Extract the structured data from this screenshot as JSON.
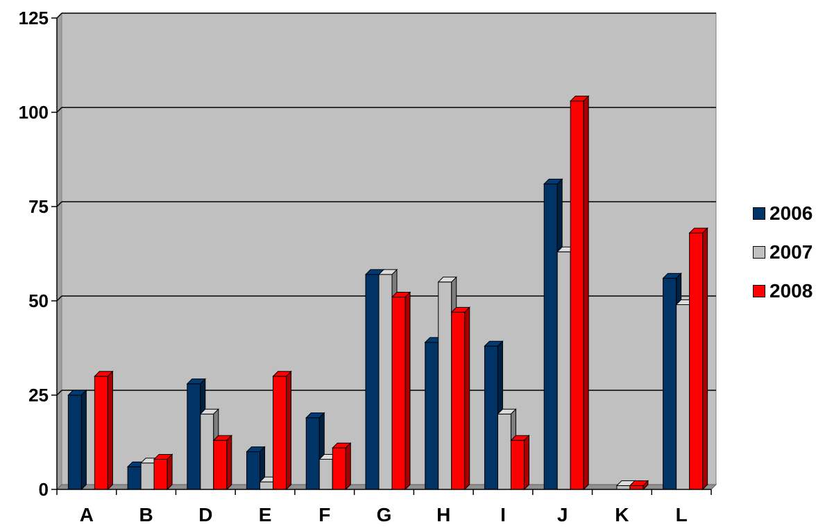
{
  "chart_data": {
    "type": "bar",
    "categories": [
      "A",
      "B",
      "D",
      "E",
      "F",
      "G",
      "H",
      "I",
      "J",
      "K",
      "L"
    ],
    "series": [
      {
        "name": "2006",
        "color": "#003366",
        "values": [
          25,
          6,
          28,
          10,
          19,
          57,
          39,
          38,
          81,
          0,
          56
        ]
      },
      {
        "name": "2007",
        "color": "#C0C0C0",
        "values": [
          0,
          7,
          20,
          2,
          8,
          57,
          55,
          20,
          63,
          1,
          49
        ]
      },
      {
        "name": "2008",
        "color": "#FF0000",
        "values": [
          30,
          8,
          13,
          30,
          11,
          51,
          47,
          13,
          103,
          1,
          68
        ]
      }
    ],
    "y_ticks": [
      "0",
      "25",
      "50",
      "75",
      "100",
      "125"
    ],
    "ylim": [
      0,
      125
    ],
    "grid": true,
    "legend_position": "right",
    "plot_background": "#C0C0C0",
    "title": "",
    "xlabel": "",
    "ylabel": ""
  }
}
